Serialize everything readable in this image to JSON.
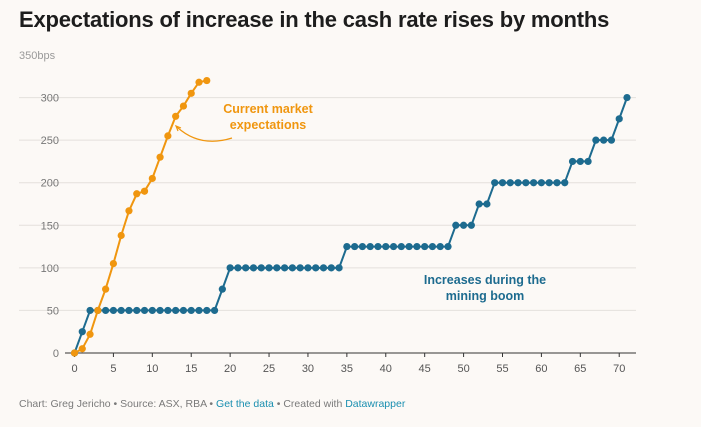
{
  "chart_data": {
    "type": "line",
    "title": "Expectations of increase in the cash rate rises by months",
    "xlabel": "",
    "ylabel": "",
    "y_unit_label": "350bps",
    "xlim": [
      0,
      71
    ],
    "ylim": [
      0,
      350
    ],
    "x_ticks": [
      "0",
      "5",
      "10",
      "15",
      "20",
      "25",
      "30",
      "35",
      "40",
      "45",
      "50",
      "55",
      "60",
      "65",
      "70"
    ],
    "y_ticks": [
      "0",
      "50",
      "100",
      "150",
      "200",
      "250",
      "300"
    ],
    "grid": true,
    "series": [
      {
        "name": "Current market expectations",
        "color": "#f0960f",
        "x": [
          0,
          1,
          2,
          3,
          4,
          5,
          6,
          7,
          8,
          9,
          10,
          11,
          12,
          13,
          14,
          15,
          16,
          17
        ],
        "y": [
          0,
          5,
          22,
          50,
          75,
          105,
          138,
          167,
          187,
          190,
          205,
          230,
          255,
          278,
          290,
          305,
          318,
          320
        ]
      },
      {
        "name": "Increases during the mining boom",
        "color": "#1d6b8f",
        "x": [
          0,
          1,
          2,
          3,
          4,
          5,
          6,
          7,
          8,
          9,
          10,
          11,
          12,
          13,
          14,
          15,
          16,
          17,
          18,
          19,
          20,
          21,
          22,
          23,
          24,
          25,
          26,
          27,
          28,
          29,
          30,
          31,
          32,
          33,
          34,
          35,
          36,
          37,
          38,
          39,
          40,
          41,
          42,
          43,
          44,
          45,
          46,
          47,
          48,
          49,
          50,
          51,
          52,
          53,
          54,
          55,
          56,
          57,
          58,
          59,
          60,
          61,
          62,
          63,
          64,
          65,
          66,
          67,
          68,
          69,
          70,
          71
        ],
        "y": [
          0,
          25,
          50,
          50,
          50,
          50,
          50,
          50,
          50,
          50,
          50,
          50,
          50,
          50,
          50,
          50,
          50,
          50,
          50,
          75,
          100,
          100,
          100,
          100,
          100,
          100,
          100,
          100,
          100,
          100,
          100,
          100,
          100,
          100,
          100,
          125,
          125,
          125,
          125,
          125,
          125,
          125,
          125,
          125,
          125,
          125,
          125,
          125,
          125,
          150,
          150,
          150,
          175,
          175,
          200,
          200,
          200,
          200,
          200,
          200,
          200,
          200,
          200,
          200,
          225,
          225,
          225,
          250,
          250,
          250,
          275,
          300
        ]
      }
    ],
    "annotations": [
      {
        "text_lines": [
          "Current market",
          "expectations"
        ],
        "color": "#f0960f"
      },
      {
        "text_lines": [
          "Increases during the",
          "mining boom"
        ],
        "color": "#1d6b8f"
      }
    ]
  },
  "footer": {
    "prefix": "Chart: Greg Jericho • Source: ASX, RBA • ",
    "link1": "Get the data",
    "middle": " • Created with ",
    "link2": "Datawrapper"
  }
}
